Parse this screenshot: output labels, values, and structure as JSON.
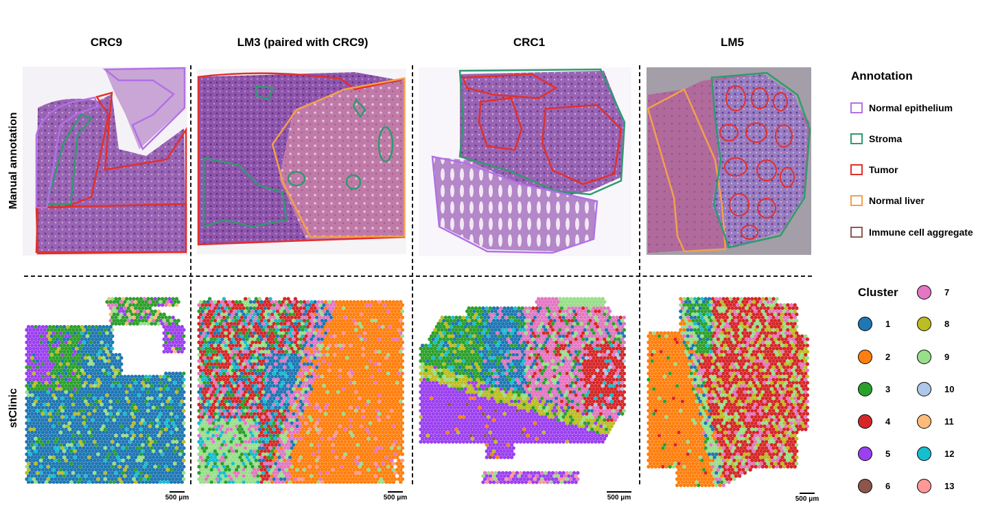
{
  "columns": [
    {
      "title": "CRC9"
    },
    {
      "title": "LM3 (paired with CRC9)"
    },
    {
      "title": "CRC1"
    },
    {
      "title": "LM5"
    }
  ],
  "rows": {
    "top": "Manual annotation",
    "bottom": "stClinic"
  },
  "scale_label": "500 μm",
  "annotation_legend": {
    "title": "Annotation",
    "items": [
      {
        "label": "Normal epithelium",
        "color": "#b370e6"
      },
      {
        "label": "Stroma",
        "color": "#2e9b6e"
      },
      {
        "label": "Tumor",
        "color": "#e0302c"
      },
      {
        "label": "Normal liver",
        "color": "#f5a04a"
      },
      {
        "label": "Immune cell aggregate",
        "color": "#8b5d4f"
      }
    ]
  },
  "cluster_legend": {
    "title": "Cluster",
    "items": [
      {
        "label": "1",
        "color": "#1f77b4"
      },
      {
        "label": "2",
        "color": "#ff7f0e"
      },
      {
        "label": "3",
        "color": "#2ca02c"
      },
      {
        "label": "4",
        "color": "#d62728"
      },
      {
        "label": "5",
        "color": "#9b40f0"
      },
      {
        "label": "6",
        "color": "#8c564b"
      },
      {
        "label": "7",
        "color": "#e377c2"
      },
      {
        "label": "8",
        "color": "#bcbd22"
      },
      {
        "label": "9",
        "color": "#98df8a"
      },
      {
        "label": "10",
        "color": "#aec7e8"
      },
      {
        "label": "11",
        "color": "#ffbb78"
      },
      {
        "label": "12",
        "color": "#17becf"
      },
      {
        "label": "13",
        "color": "#ff9896"
      }
    ]
  },
  "tissue_colors": {
    "he_purple": "#9a64b4",
    "he_light": "#c9a6d6",
    "liver_pink": "#b06a9c"
  }
}
